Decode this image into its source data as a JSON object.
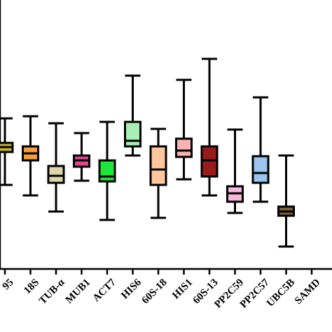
{
  "chart_data": {
    "type": "boxplot",
    "title": "",
    "xlabel": "",
    "ylabel": "",
    "grid": false,
    "legend": "none",
    "categories": [
      "95",
      "18S",
      "TUB-α",
      "MUB1",
      "ACT7",
      "HIS6",
      "60S-18",
      "HIS1",
      "60S-13",
      "PP2C59",
      "PP2C57",
      "UBC5B",
      "SAMD"
    ],
    "boxes": [
      {
        "category": "95",
        "min": 12.0,
        "q1": 16.7,
        "median": 17.4,
        "q3": 18.0,
        "max": 21.5,
        "color": "#c8b52e"
      },
      {
        "category": "18S",
        "min": 10.5,
        "q1": 15.5,
        "median": 16.5,
        "q3": 17.5,
        "max": 21.8,
        "color": "#f39c3c"
      },
      {
        "category": "TUB-α",
        "min": 8.2,
        "q1": 12.3,
        "median": 13.3,
        "q3": 14.7,
        "max": 20.8,
        "color": "#ddd7a8"
      },
      {
        "category": "MUB1",
        "min": 12.6,
        "q1": 14.6,
        "median": 15.5,
        "q3": 16.2,
        "max": 19.4,
        "color": "#e0468e"
      },
      {
        "category": "ACT7",
        "min": 7.0,
        "q1": 12.5,
        "median": 13.2,
        "q3": 15.5,
        "max": 21.0,
        "color": "#1fe63a"
      },
      {
        "category": "HIS6",
        "min": 16.2,
        "q1": 17.5,
        "median": 18.3,
        "q3": 21.0,
        "max": 27.6,
        "color": "#a9efb5"
      },
      {
        "category": "60S-18",
        "min": 7.3,
        "q1": 12.0,
        "median": 14.2,
        "q3": 17.5,
        "max": 20.0,
        "color": "#ffc79d"
      },
      {
        "category": "HIS1",
        "min": 12.8,
        "q1": 16.0,
        "median": 16.9,
        "q3": 18.6,
        "max": 27.0,
        "color": "#fab3b0"
      },
      {
        "category": "60S-13",
        "min": 10.5,
        "q1": 13.2,
        "median": 15.5,
        "q3": 17.5,
        "max": 30.0,
        "color": "#9b1b1b"
      },
      {
        "category": "PP2C59",
        "min": 8.0,
        "q1": 9.6,
        "median": 10.8,
        "q3": 11.8,
        "max": 19.9,
        "color": "#f7b9da"
      },
      {
        "category": "PP2C57",
        "min": 9.6,
        "q1": 12.3,
        "median": 13.7,
        "q3": 16.1,
        "max": 24.5,
        "color": "#9cc4ec"
      },
      {
        "category": "UBC5B",
        "min": 3.2,
        "q1": 7.6,
        "median": 8.2,
        "q3": 8.9,
        "max": 16.2,
        "color": "#7a6430"
      },
      {
        "category": "SAMD",
        "min": null,
        "q1": null,
        "median": null,
        "q3": null,
        "max": null,
        "color": "#ffffff"
      }
    ]
  }
}
